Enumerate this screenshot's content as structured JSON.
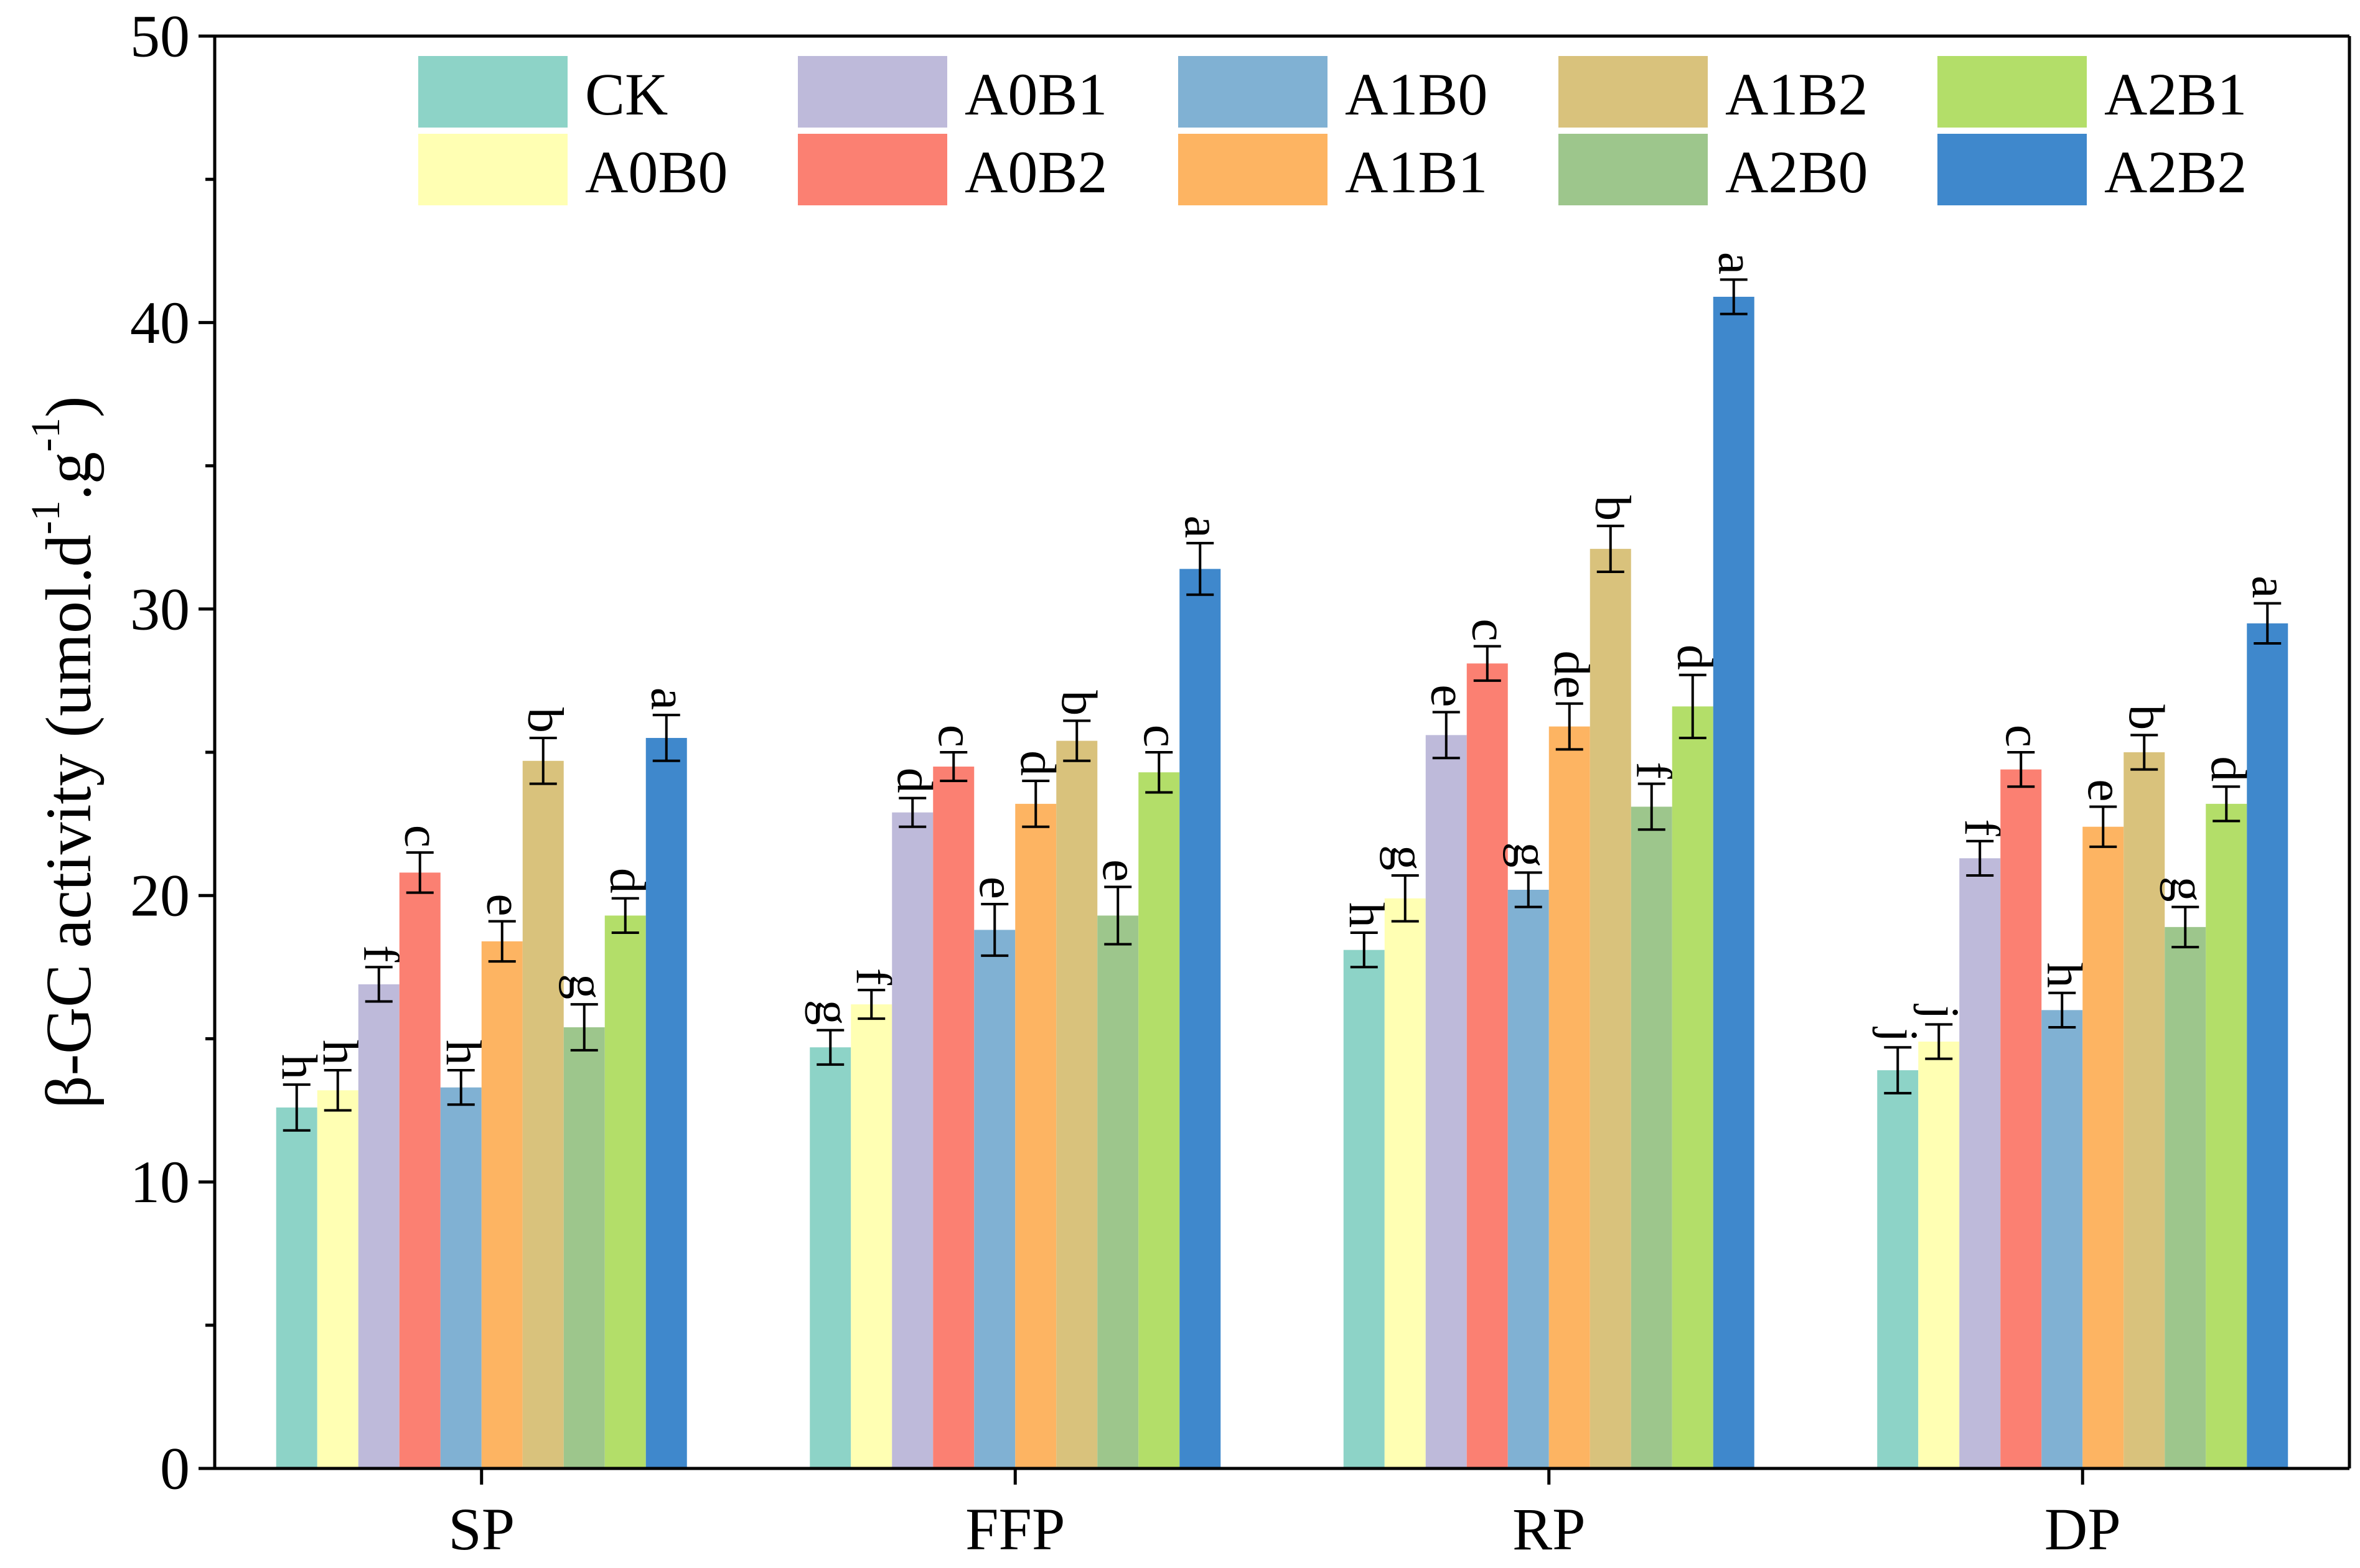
{
  "chart_data": {
    "type": "bar",
    "title": "",
    "xlabel": "",
    "ylabel": {
      "prefix": "β-GC activity (umol.d",
      "sup1": "-1",
      "middle": ".g",
      "sup2": "-1",
      "suffix": ")"
    },
    "ylim": [
      0,
      50
    ],
    "y_ticks": [
      "0",
      "10",
      "20",
      "30",
      "40",
      "50"
    ],
    "y_tick_values": [
      0,
      10,
      20,
      30,
      40,
      50
    ],
    "y_minor_tick_values": [
      5,
      15,
      25,
      35,
      45
    ],
    "categories": [
      "SP",
      "FFP",
      "RP",
      "DP"
    ],
    "legend_position": "top",
    "series": [
      {
        "name": "CK",
        "color": "#8dd3c7",
        "values": [
          12.6,
          14.7,
          18.1,
          13.9
        ],
        "errors": [
          0.8,
          0.6,
          0.6,
          0.8
        ],
        "labels": [
          "h",
          "g",
          "h",
          "j"
        ]
      },
      {
        "name": "A0B0",
        "color": "#ffffb3",
        "values": [
          13.2,
          16.2,
          19.9,
          14.9
        ],
        "errors": [
          0.7,
          0.5,
          0.8,
          0.6
        ],
        "labels": [
          "h",
          "f",
          "g",
          "j"
        ]
      },
      {
        "name": "A0B1",
        "color": "#bebada",
        "values": [
          16.9,
          22.9,
          25.6,
          21.3
        ],
        "errors": [
          0.6,
          0.5,
          0.8,
          0.6
        ],
        "labels": [
          "f",
          "d",
          "e",
          "f"
        ]
      },
      {
        "name": "A0B2",
        "color": "#fb8072",
        "values": [
          20.8,
          24.5,
          28.1,
          24.4
        ],
        "errors": [
          0.7,
          0.5,
          0.6,
          0.6
        ],
        "labels": [
          "c",
          "c",
          "c",
          "c"
        ]
      },
      {
        "name": "A1B0",
        "color": "#80b1d3",
        "values": [
          13.3,
          18.8,
          20.2,
          16.0
        ],
        "errors": [
          0.6,
          0.9,
          0.6,
          0.6
        ],
        "labels": [
          "h",
          "e",
          "g",
          "h"
        ]
      },
      {
        "name": "A1B1",
        "color": "#fdb462",
        "values": [
          18.4,
          23.2,
          25.9,
          22.4
        ],
        "errors": [
          0.7,
          0.8,
          0.8,
          0.7
        ],
        "labels": [
          "e",
          "d",
          "de",
          "e"
        ]
      },
      {
        "name": "A1B2",
        "color": "#d9c27c",
        "values": [
          24.7,
          25.4,
          32.1,
          25.0
        ],
        "errors": [
          0.8,
          0.7,
          0.8,
          0.6
        ],
        "labels": [
          "b",
          "b",
          "b",
          "b"
        ]
      },
      {
        "name": "A2B0",
        "color": "#9dc68c",
        "values": [
          15.4,
          19.3,
          23.1,
          18.9
        ],
        "errors": [
          0.8,
          1.0,
          0.8,
          0.7
        ],
        "labels": [
          "g",
          "e",
          "f",
          "g"
        ]
      },
      {
        "name": "A2B1",
        "color": "#b3de69",
        "values": [
          19.3,
          24.3,
          26.6,
          23.2
        ],
        "errors": [
          0.6,
          0.7,
          1.1,
          0.6
        ],
        "labels": [
          "d",
          "c",
          "d",
          "d"
        ]
      },
      {
        "name": "A2B2",
        "color": "#3f88cc",
        "values": [
          25.5,
          31.4,
          40.9,
          29.5
        ],
        "errors": [
          0.8,
          0.9,
          0.6,
          0.7
        ],
        "labels": [
          "a",
          "a",
          "a",
          "a"
        ]
      }
    ]
  }
}
